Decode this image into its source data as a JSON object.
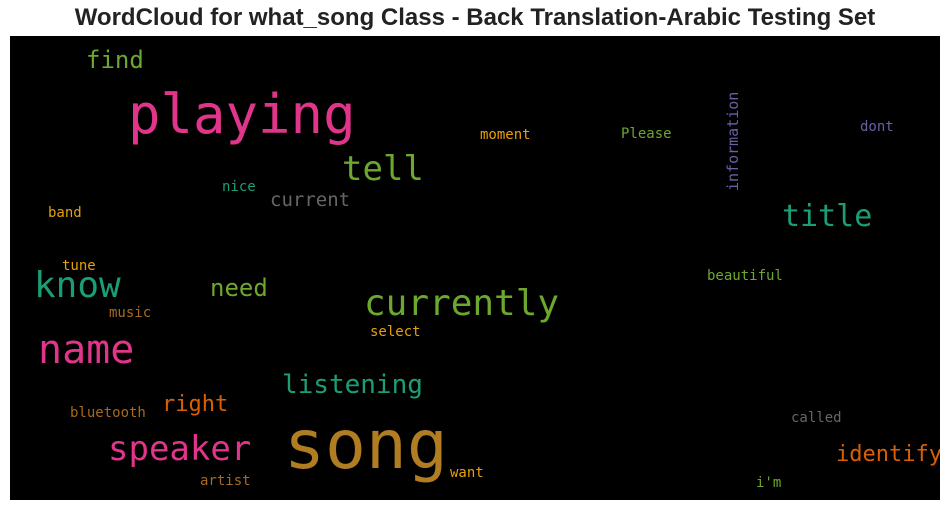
{
  "title": "WordCloud for what_song Class - Back Translation-Arabic Testing Set",
  "words": {
    "song": {
      "text": "song",
      "color": "#b07d22"
    },
    "playing": {
      "text": "playing",
      "color": "#e0358a"
    },
    "currently": {
      "text": "currently",
      "color": "#6da82e"
    },
    "name": {
      "text": "name",
      "color": "#e0358a"
    },
    "know": {
      "text": "know",
      "color": "#1b9e77"
    },
    "speaker": {
      "text": "speaker",
      "color": "#e0358a"
    },
    "tell": {
      "text": "tell",
      "color": "#6da82e"
    },
    "title": {
      "text": "title",
      "color": "#1b9e77"
    },
    "listening": {
      "text": "listening",
      "color": "#1b9e77"
    },
    "find": {
      "text": "find",
      "color": "#6da82e"
    },
    "need": {
      "text": "need",
      "color": "#6da82e"
    },
    "right": {
      "text": "right",
      "color": "#d95f02"
    },
    "identify": {
      "text": "identify",
      "color": "#d95f02"
    },
    "current": {
      "text": "current",
      "color": "#666666"
    },
    "information": {
      "text": "information",
      "color": "#6b5fa5"
    },
    "moment": {
      "text": "moment",
      "color": "#e6a10a"
    },
    "please": {
      "text": "Please",
      "color": "#6da82e"
    },
    "dont": {
      "text": "dont",
      "color": "#6b5fa5"
    },
    "nice": {
      "text": "nice",
      "color": "#1b9e77"
    },
    "band": {
      "text": "band",
      "color": "#e6a10a"
    },
    "tune": {
      "text": "tune",
      "color": "#e6a10a"
    },
    "music": {
      "text": "music",
      "color": "#a66a1e"
    },
    "beautiful": {
      "text": "beautiful",
      "color": "#6da82e"
    },
    "select": {
      "text": "select",
      "color": "#e6a10a"
    },
    "bluetooth": {
      "text": "bluetooth",
      "color": "#a66a1e"
    },
    "called": {
      "text": "called",
      "color": "#666666"
    },
    "artist": {
      "text": "artist",
      "color": "#a66a1e"
    },
    "want": {
      "text": "want",
      "color": "#e6a10a"
    },
    "im": {
      "text": "i'm",
      "color": "#6da82e"
    }
  }
}
